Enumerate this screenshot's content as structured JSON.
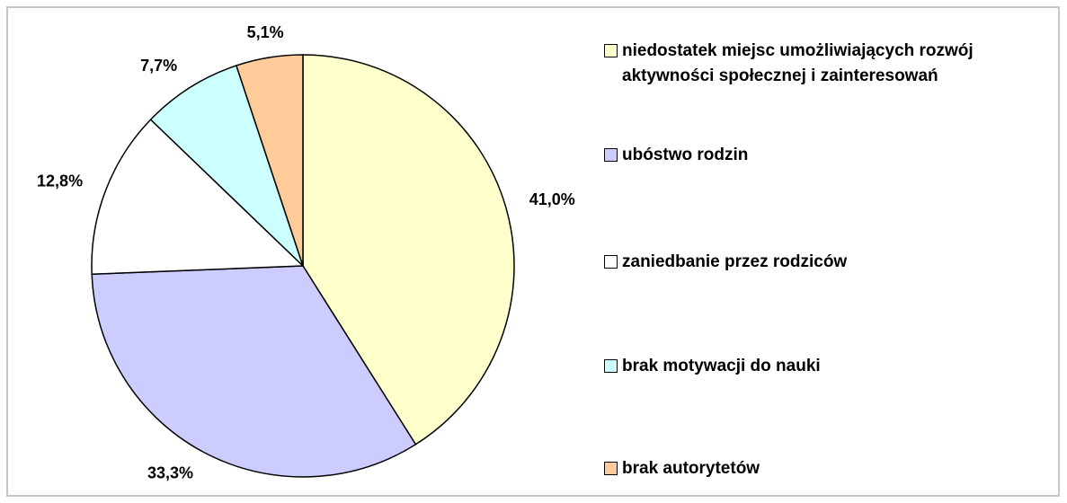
{
  "chart_data": {
    "type": "pie",
    "categories": [
      "niedostatek miejsc umożliwiających rozwój aktywności społecznej i zainteresowań",
      "ubóstwo rodzin",
      "zaniedbanie przez rodziców",
      "brak motywacji do nauki",
      "brak autorytetów"
    ],
    "values": [
      41.0,
      33.3,
      12.8,
      7.7,
      5.1
    ],
    "value_labels": [
      "41,0%",
      "33,3%",
      "12,8%",
      "7,7%",
      "5,1%"
    ],
    "colors": [
      "#ffffcc",
      "#ccccff",
      "#ffffff",
      "#ccffff",
      "#ffcc99"
    ],
    "legend": "right"
  }
}
